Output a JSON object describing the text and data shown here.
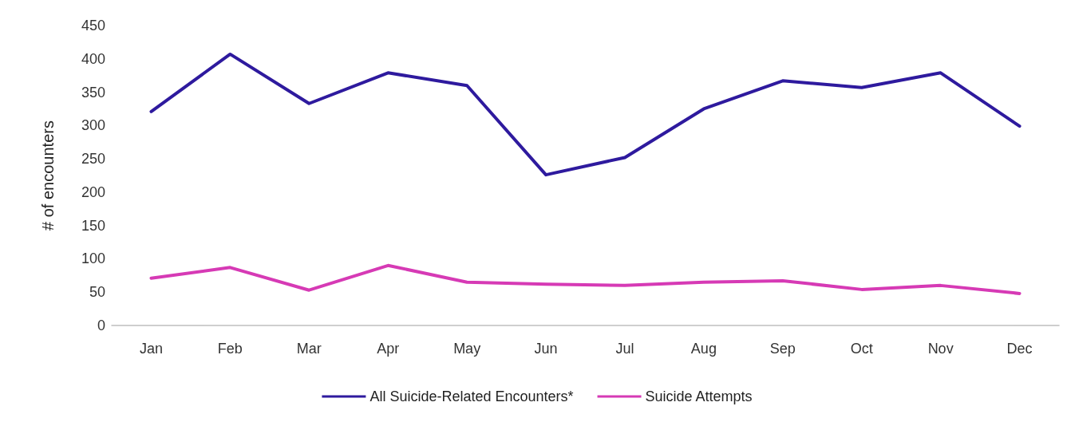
{
  "chart_data": {
    "type": "line",
    "ylabel": "# of encounters",
    "categories": [
      "Jan",
      "Feb",
      "Mar",
      "Apr",
      "May",
      "Jun",
      "Jul",
      "Aug",
      "Sep",
      "Oct",
      "Nov",
      "Dec"
    ],
    "series": [
      {
        "name": "All Suicide-Related Encounters*",
        "color": "#2e1a9e",
        "values": [
          321,
          407,
          333,
          379,
          360,
          226,
          252,
          325,
          367,
          357,
          379,
          299
        ]
      },
      {
        "name": "Suicide Attempts",
        "color": "#d63ab5",
        "values": [
          71,
          87,
          53,
          90,
          65,
          62,
          60,
          65,
          67,
          54,
          60,
          48
        ]
      }
    ],
    "ylim": [
      0,
      450
    ],
    "yticks": [
      0,
      50,
      100,
      150,
      200,
      250,
      300,
      350,
      400,
      450
    ],
    "grid": false,
    "legend": "bottom",
    "marker": "none",
    "line_style": "solid"
  }
}
